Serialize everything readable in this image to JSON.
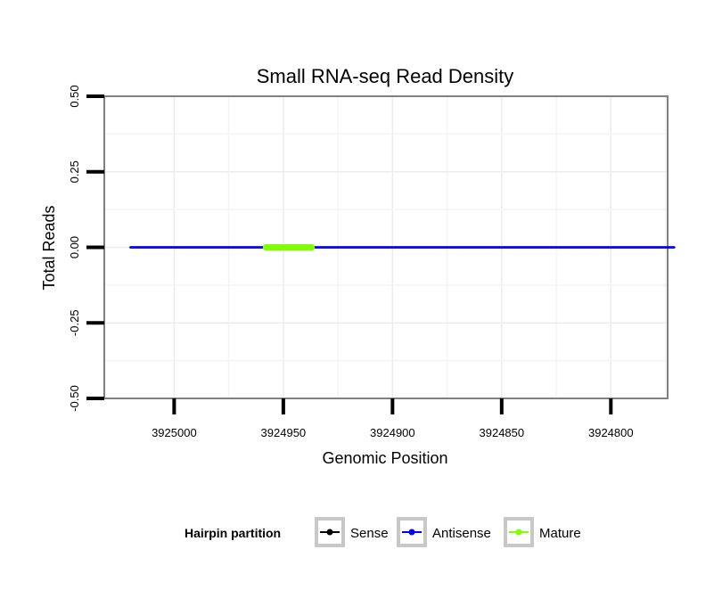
{
  "chart_data": {
    "type": "line",
    "title": "Small RNA-seq Read Density",
    "xlabel": "Genomic Position",
    "ylabel": "Total Reads",
    "x_reversed": true,
    "xlim": [
      3925032,
      3924774
    ],
    "ylim": [
      -0.5,
      0.5
    ],
    "x_ticks": [
      3925000,
      3924950,
      3924900,
      3924850,
      3924800
    ],
    "x_tick_labels": [
      "3925000",
      "3924950",
      "3924900",
      "3924850",
      "3924800"
    ],
    "y_ticks": [
      -0.5,
      -0.25,
      0,
      0.25,
      0.5
    ],
    "y_tick_labels": [
      "-0.50",
      "-0.25",
      "0.00",
      "0.25",
      "0.50"
    ],
    "grid": true,
    "legend_position": "bottom",
    "legend_title": "Hairpin partition",
    "series": [
      {
        "name": "Sense",
        "color": "#000000",
        "x": [
          3925020,
          3924771
        ],
        "y": [
          0,
          0
        ]
      },
      {
        "name": "Antisense",
        "color": "#0000ff",
        "x": [
          3925020,
          3924771
        ],
        "y": [
          0,
          0
        ]
      },
      {
        "name": "Mature",
        "color": "#7fff00",
        "x": [
          3924958,
          3924937
        ],
        "y": [
          0,
          0
        ]
      }
    ]
  }
}
